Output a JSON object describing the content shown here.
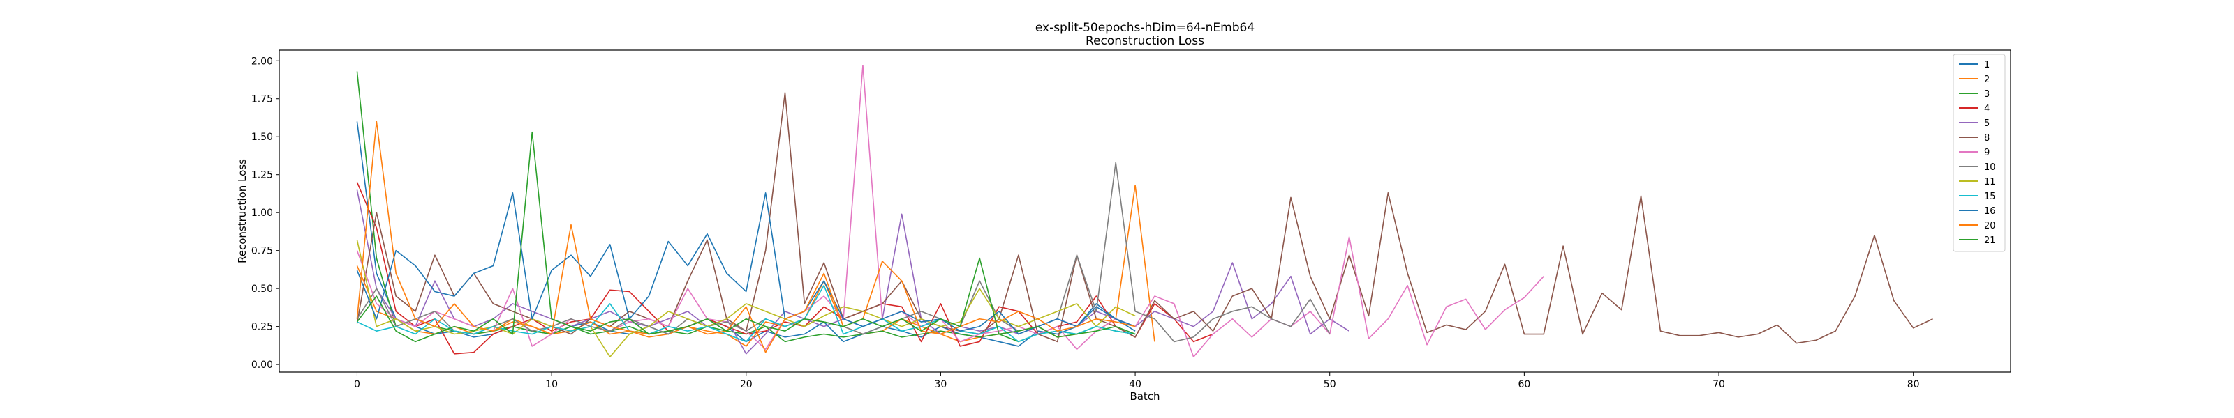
{
  "chart_data": {
    "type": "line",
    "title": "ex-split-50epochs-hDim=64-nEmb64",
    "subtitle": "Reconstruction Loss",
    "xlabel": "Batch",
    "ylabel": "Reconstruction Loss",
    "xlim": [
      -4,
      85
    ],
    "ylim": [
      -0.05,
      2.07
    ],
    "xticks": [
      0,
      10,
      20,
      30,
      40,
      50,
      60,
      70,
      80
    ],
    "yticks": [
      0.0,
      0.25,
      0.5,
      0.75,
      1.0,
      1.25,
      1.5,
      1.75,
      2.0
    ],
    "ytick_labels": [
      "0.00",
      "0.25",
      "0.50",
      "0.75",
      "1.00",
      "1.25",
      "1.50",
      "1.75",
      "2.00"
    ],
    "grid": false,
    "legend_position": "top-right",
    "series": [
      {
        "name": "1",
        "color": "#1f77b4",
        "values": [
          1.6,
          0.6,
          0.3,
          0.25,
          0.2,
          0.22,
          0.18,
          0.2,
          0.25,
          0.22,
          0.2,
          0.25,
          0.28,
          0.22,
          0.2,
          0.25,
          0.2,
          0.25,
          0.3,
          0.25,
          0.15,
          0.22,
          0.18,
          0.2,
          0.28,
          0.15,
          0.2,
          0.25,
          0.22,
          0.18,
          0.25,
          0.2,
          0.18,
          0.15,
          0.12,
          0.22,
          0.2,
          0.25,
          0.4,
          0.3,
          0.22
        ]
      },
      {
        "name": "2",
        "color": "#ff7f0e",
        "values": [
          0.65,
          0.35,
          0.3,
          0.22,
          0.2,
          0.25,
          0.2,
          0.22,
          0.3,
          0.25,
          0.2,
          0.22,
          0.28,
          0.2,
          0.22,
          0.18,
          0.2,
          0.25,
          0.22,
          0.2,
          0.12,
          0.28,
          0.25,
          0.3,
          0.55,
          0.25,
          0.2,
          0.22,
          0.3,
          0.25,
          0.2,
          0.15,
          0.18,
          0.2,
          0.22,
          0.25,
          0.18,
          0.2,
          0.22,
          0.3,
          1.18,
          0.15
        ]
      },
      {
        "name": "3",
        "color": "#2ca02c",
        "values": [
          1.93,
          0.7,
          0.25,
          0.3,
          0.25,
          0.22,
          0.2,
          0.22,
          0.25,
          0.22,
          0.2,
          0.25,
          0.2,
          0.22,
          0.25,
          0.2,
          0.22,
          0.2,
          0.25,
          0.22,
          0.2,
          0.25,
          0.15,
          0.18,
          0.2,
          0.18,
          0.2,
          0.22,
          0.18,
          0.2,
          0.22,
          0.2,
          0.18,
          0.2,
          0.15,
          0.2,
          0.22,
          0.2,
          0.25,
          0.22,
          0.2
        ]
      },
      {
        "name": "4",
        "color": "#d62728",
        "values": [
          1.2,
          0.9,
          0.35,
          0.25,
          0.3,
          0.07,
          0.08,
          0.2,
          0.25,
          0.3,
          0.22,
          0.28,
          0.3,
          0.49,
          0.48,
          0.35,
          0.22,
          0.25,
          0.3,
          0.25,
          0.2,
          0.22,
          0.28,
          0.25,
          0.38,
          0.3,
          0.35,
          0.4,
          0.38,
          0.15,
          0.4,
          0.12,
          0.15,
          0.38,
          0.35,
          0.2,
          0.25,
          0.28,
          0.45,
          0.25,
          0.18,
          0.4,
          0.3,
          0.15,
          0.2
        ]
      },
      {
        "name": "5",
        "color": "#9467bd",
        "values": [
          1.15,
          0.5,
          0.3,
          0.25,
          0.55,
          0.3,
          0.25,
          0.3,
          0.4,
          0.35,
          0.3,
          0.25,
          0.3,
          0.35,
          0.28,
          0.25,
          0.3,
          0.35,
          0.25,
          0.3,
          0.07,
          0.2,
          0.35,
          0.3,
          0.25,
          0.3,
          0.25,
          0.3,
          0.99,
          0.3,
          0.2,
          0.25,
          0.22,
          0.25,
          0.2,
          0.25,
          0.3,
          0.25,
          0.35,
          0.3,
          0.25,
          0.35,
          0.3,
          0.25,
          0.35,
          0.67,
          0.3,
          0.4,
          0.58,
          0.2,
          0.3,
          0.22
        ]
      },
      {
        "name": "8",
        "color": "#8c564b",
        "values": [
          0.27,
          1.0,
          0.45,
          0.35,
          0.72,
          0.45,
          0.6,
          0.4,
          0.35,
          0.3,
          0.25,
          0.2,
          0.3,
          0.25,
          0.35,
          0.3,
          0.25,
          0.55,
          0.82,
          0.3,
          0.22,
          0.75,
          1.79,
          0.4,
          0.67,
          0.3,
          0.35,
          0.4,
          0.55,
          0.3,
          0.25,
          0.22,
          0.2,
          0.3,
          0.72,
          0.2,
          0.15,
          0.72,
          0.3,
          0.25,
          0.18,
          0.42,
          0.3,
          0.35,
          0.22,
          0.45,
          0.5,
          0.3,
          1.1,
          0.58,
          0.3,
          0.72,
          0.32,
          1.13,
          0.6,
          0.21,
          0.26,
          0.23,
          0.35,
          0.66,
          0.2,
          0.2,
          0.78,
          0.2,
          0.47,
          0.36,
          1.11,
          0.22,
          0.19,
          0.19,
          0.21,
          0.18,
          0.2,
          0.26,
          0.14,
          0.16,
          0.22,
          0.45,
          0.85,
          0.42,
          0.24,
          0.3
        ]
      },
      {
        "name": "9",
        "color": "#e377c2",
        "values": [
          0.75,
          0.4,
          0.3,
          0.25,
          0.35,
          0.3,
          0.25,
          0.22,
          0.5,
          0.12,
          0.2,
          0.3,
          0.25,
          0.22,
          0.28,
          0.3,
          0.25,
          0.5,
          0.3,
          0.28,
          0.22,
          0.1,
          0.3,
          0.35,
          0.45,
          0.3,
          1.97,
          0.3,
          0.35,
          0.25,
          0.3,
          0.15,
          0.2,
          0.22,
          0.25,
          0.2,
          0.25,
          0.1,
          0.22,
          0.3,
          0.25,
          0.45,
          0.4,
          0.05,
          0.2,
          0.3,
          0.18,
          0.3,
          0.25,
          0.35,
          0.2,
          0.84,
          0.17,
          0.3,
          0.52,
          0.13,
          0.38,
          0.43,
          0.23,
          0.36,
          0.44,
          0.58
        ]
      },
      {
        "name": "10",
        "color": "#7f7f7f",
        "values": [
          0.3,
          0.5,
          0.25,
          0.3,
          0.35,
          0.22,
          0.2,
          0.25,
          0.3,
          0.22,
          0.25,
          0.3,
          0.25,
          0.22,
          0.3,
          0.25,
          0.2,
          0.3,
          0.25,
          0.28,
          0.22,
          0.3,
          0.25,
          0.3,
          0.28,
          0.25,
          0.2,
          0.25,
          0.3,
          0.35,
          0.3,
          0.25,
          0.55,
          0.3,
          0.22,
          0.25,
          0.3,
          0.72,
          0.35,
          1.33,
          0.35,
          0.3,
          0.15,
          0.18,
          0.3,
          0.35,
          0.38,
          0.3,
          0.25,
          0.43,
          0.2
        ]
      },
      {
        "name": "11",
        "color": "#bcbd22",
        "values": [
          0.82,
          0.25,
          0.3,
          0.22,
          0.25,
          0.2,
          0.22,
          0.25,
          0.2,
          0.3,
          0.25,
          0.22,
          0.25,
          0.05,
          0.2,
          0.25,
          0.35,
          0.3,
          0.25,
          0.3,
          0.4,
          0.35,
          0.3,
          0.25,
          0.32,
          0.38,
          0.35,
          0.3,
          0.25,
          0.3,
          0.25,
          0.28,
          0.5,
          0.3,
          0.25,
          0.3,
          0.35,
          0.4,
          0.25,
          0.38,
          0.32
        ]
      },
      {
        "name": "15",
        "color": "#17becf",
        "values": [
          0.28,
          0.22,
          0.25,
          0.2,
          0.3,
          0.22,
          0.2,
          0.25,
          0.22,
          0.2,
          0.25,
          0.22,
          0.25,
          0.4,
          0.22,
          0.2,
          0.25,
          0.22,
          0.25,
          0.2,
          0.15,
          0.3,
          0.25,
          0.3,
          0.52,
          0.2,
          0.25,
          0.3,
          0.22,
          0.25,
          0.3,
          0.22,
          0.2,
          0.25,
          0.15,
          0.2,
          0.22,
          0.2,
          0.25,
          0.22,
          0.2
        ]
      },
      {
        "name": "16",
        "color": "#1f77b4",
        "values": [
          0.62,
          0.3,
          0.75,
          0.65,
          0.48,
          0.45,
          0.6,
          0.65,
          1.13,
          0.3,
          0.62,
          0.72,
          0.58,
          0.79,
          0.3,
          0.45,
          0.81,
          0.65,
          0.86,
          0.6,
          0.48,
          1.13,
          0.3,
          0.35,
          0.55,
          0.3,
          0.25,
          0.3,
          0.35,
          0.28,
          0.3,
          0.22,
          0.25,
          0.35,
          0.2,
          0.25,
          0.3,
          0.25,
          0.38,
          0.3,
          0.25
        ]
      },
      {
        "name": "20",
        "color": "#ff7f0e",
        "values": [
          0.3,
          1.6,
          0.6,
          0.3,
          0.25,
          0.4,
          0.25,
          0.22,
          0.28,
          0.25,
          0.2,
          0.92,
          0.3,
          0.25,
          0.22,
          0.2,
          0.22,
          0.25,
          0.2,
          0.22,
          0.38,
          0.08,
          0.3,
          0.35,
          0.6,
          0.25,
          0.3,
          0.68,
          0.55,
          0.22,
          0.2,
          0.25,
          0.3,
          0.28,
          0.35,
          0.3,
          0.22,
          0.25,
          0.3,
          0.28,
          0.25
        ]
      },
      {
        "name": "21",
        "color": "#2ca02c",
        "values": [
          0.28,
          0.45,
          0.22,
          0.15,
          0.2,
          0.25,
          0.22,
          0.3,
          0.2,
          1.53,
          0.3,
          0.25,
          0.22,
          0.28,
          0.3,
          0.2,
          0.22,
          0.25,
          0.3,
          0.22,
          0.3,
          0.25,
          0.22,
          0.3,
          0.28,
          0.25,
          0.3,
          0.25,
          0.3,
          0.22,
          0.3,
          0.25,
          0.7,
          0.2,
          0.22,
          0.25,
          0.18,
          0.2,
          0.22,
          0.25,
          0.2
        ]
      }
    ]
  }
}
